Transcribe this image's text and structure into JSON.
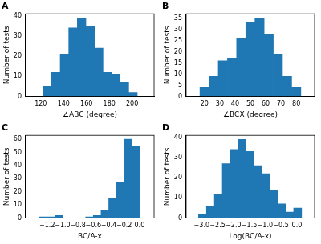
{
  "chart_data": [
    {
      "type": "histogram",
      "title": "A",
      "x_label": "∠ABC (degree)",
      "y_label": "Number of tests",
      "bins": [
        122,
        129.5,
        137,
        144.5,
        152,
        159.5,
        167,
        174.5,
        182,
        189.5,
        197,
        204.5
      ],
      "values": [
        5,
        12,
        21,
        34,
        39,
        35,
        24,
        12,
        11,
        7,
        2
      ],
      "color": "#1f77b4",
      "xlim": [
        118,
        208
      ],
      "xticks": [
        120,
        140,
        160,
        180,
        200
      ],
      "ylim": [
        0,
        41
      ],
      "yticks": [
        0,
        10,
        20,
        30,
        40
      ],
      "grid": false
    },
    {
      "type": "histogram",
      "title": "B",
      "x_label": "∠BCX (degree)",
      "y_label": "Number of tests",
      "bins": [
        17,
        23,
        29,
        35,
        41,
        47,
        53,
        59,
        65,
        71,
        77,
        83
      ],
      "values": [
        4,
        9,
        16,
        17,
        26,
        33,
        35,
        28,
        19,
        9,
        4
      ],
      "color": "#1f77b4",
      "xlim": [
        14,
        86
      ],
      "xticks": [
        20,
        30,
        40,
        50,
        60,
        70,
        80
      ],
      "ylim": [
        0,
        37
      ],
      "yticks": [
        0,
        5,
        10,
        15,
        20,
        25,
        30,
        35
      ],
      "grid": false
    },
    {
      "type": "histogram",
      "title": "C",
      "x_label": "BC/A-x",
      "y_label": "Number of tests",
      "bins": [
        -1.3,
        -1.2,
        -1.1,
        -1.0,
        -0.9,
        -0.8,
        -0.7,
        -0.6,
        -0.5,
        -0.4,
        -0.3,
        -0.2,
        -0.1,
        0.0
      ],
      "values": [
        1,
        1,
        2,
        0,
        0,
        0,
        1,
        2,
        6,
        15,
        27,
        60,
        55
      ],
      "color": "#1f77b4",
      "xlim": [
        -1.36,
        0.07
      ],
      "xticks": [
        {
          "value": -1.2,
          "label": "−1.2"
        },
        {
          "value": -1.0,
          "label": "−1.0"
        },
        {
          "value": -0.8,
          "label": "−0.8"
        },
        {
          "value": -0.6,
          "label": "−0.6"
        },
        {
          "value": -0.4,
          "label": "−0.4"
        },
        {
          "value": -0.2,
          "label": "−0.2"
        },
        {
          "value": 0,
          "label": "0.0"
        }
      ],
      "ylim": [
        0,
        63
      ],
      "yticks": [
        0,
        10,
        20,
        30,
        40,
        50,
        60
      ],
      "grid": false
    },
    {
      "type": "histogram",
      "title": "D",
      "x_label": "Log(BC/A-x)",
      "y_label": "Number of tests",
      "bins": [
        -3.1,
        -2.85,
        -2.6,
        -2.35,
        -2.1,
        -1.85,
        -1.6,
        -1.35,
        -1.1,
        -0.85,
        -0.6,
        -0.35,
        -0.1,
        0.15
      ],
      "values": [
        2,
        6,
        12,
        27,
        34,
        39,
        33,
        26,
        22,
        14,
        7,
        3,
        5
      ],
      "color": "#1f77b4",
      "xlim": [
        -3.2,
        0.27
      ],
      "xticks": [
        {
          "value": -3.0,
          "label": "−3.0"
        },
        {
          "value": -2.5,
          "label": "−2.5"
        },
        {
          "value": -2.0,
          "label": "−2.0"
        },
        {
          "value": -1.5,
          "label": "−1.5"
        },
        {
          "value": -1.0,
          "label": "−1.0"
        },
        {
          "value": -0.5,
          "label": "−0.5"
        },
        {
          "value": 0,
          "label": "0.0"
        }
      ],
      "ylim": [
        0,
        41
      ],
      "yticks": [
        0,
        10,
        20,
        30,
        40
      ],
      "grid": false
    }
  ]
}
